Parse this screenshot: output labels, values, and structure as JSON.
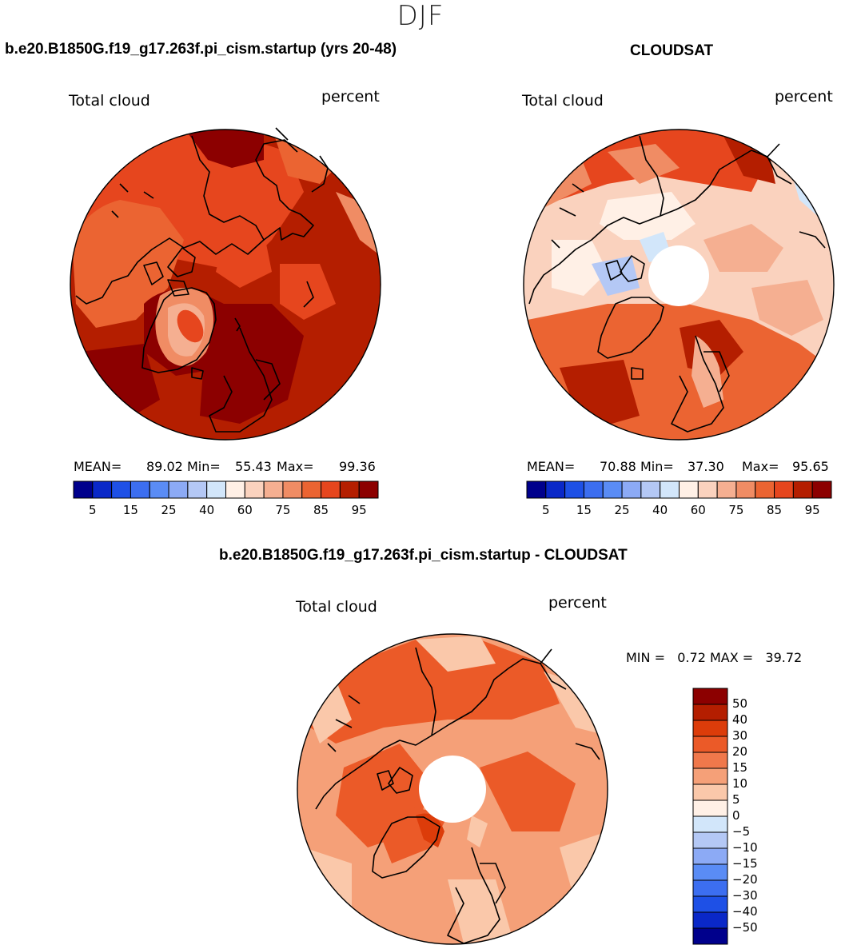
{
  "figure_title": "DJF",
  "panels": [
    {
      "title": "b.e20.B1850G.f19_g17.263f.pi_cism.startup (yrs 20-48)",
      "left_label": "Total cloud",
      "right_label": "percent",
      "mean_label": "MEAN=",
      "mean_value": "89.02",
      "min_label": "Min=",
      "min_value": "55.43",
      "max_label": "Max=",
      "max_value": "99.36"
    },
    {
      "title": "CLOUDSAT",
      "left_label": "Total cloud",
      "right_label": "percent",
      "mean_label": "MEAN=",
      "mean_value": "70.88",
      "min_label": "Min=",
      "min_value": "37.30",
      "max_label": "Max=",
      "max_value": "95.65"
    },
    {
      "title": "b.e20.B1850G.f19_g17.263f.pi_cism.startup - CLOUDSAT",
      "left_label": "Total cloud",
      "right_label": "percent",
      "minmax_text": "MIN =   0.72 MAX =   39.72"
    }
  ],
  "colorbar_abs": {
    "colors": [
      "#00008c",
      "#0a28c8",
      "#1e50e6",
      "#3c6ef0",
      "#5a8cf5",
      "#8caaf5",
      "#b4c8f5",
      "#d2e6fa",
      "#fff0e6",
      "#fad2be",
      "#f5af91",
      "#f08c64",
      "#eb6432",
      "#e6461e",
      "#b41e00",
      "#8c0000"
    ],
    "tick_labels": [
      "5",
      "15",
      "25",
      "40",
      "60",
      "75",
      "85",
      "95"
    ]
  },
  "colorbar_diff": {
    "colors": [
      "#8c0000",
      "#b41e00",
      "#dc3c0a",
      "#eb5a28",
      "#f0784b",
      "#f5a078",
      "#fac8aa",
      "#fff0e6",
      "#d2e6fa",
      "#b4c8f5",
      "#8caaf5",
      "#5a8cf5",
      "#3c6ef0",
      "#1e50e6",
      "#0a28c8",
      "#00008c"
    ],
    "tick_labels": [
      "50",
      "40",
      "30",
      "20",
      "15",
      "10",
      "5",
      "0",
      "-5",
      "-10",
      "-15",
      "-20",
      "-30",
      "-40",
      "-50"
    ]
  }
}
